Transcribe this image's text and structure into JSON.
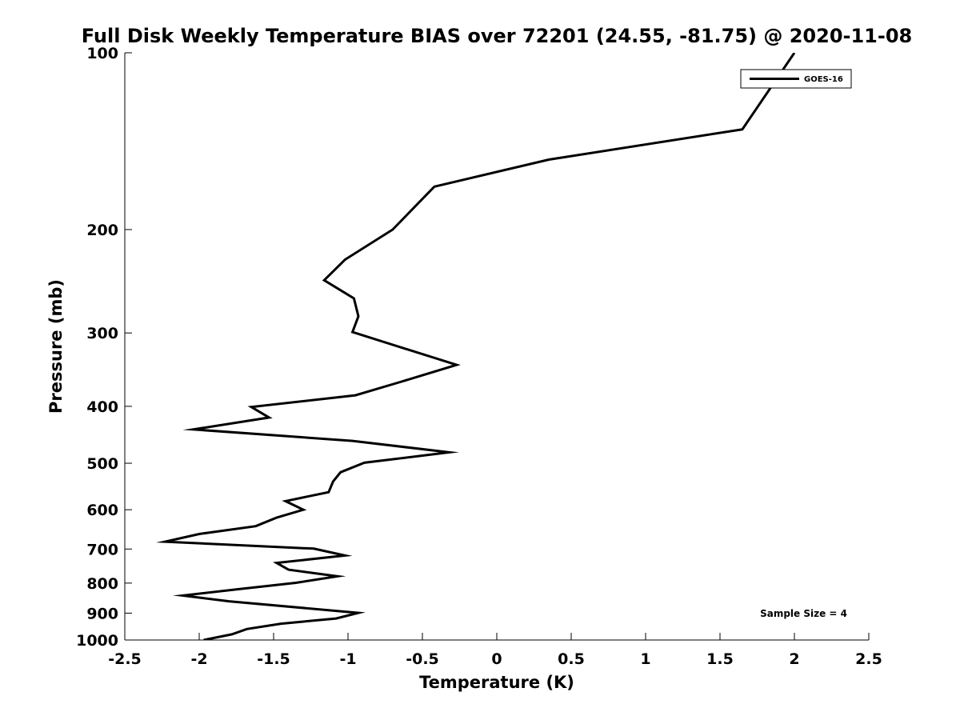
{
  "chart_data": {
    "type": "line",
    "title": "Full Disk Weekly Temperature BIAS over 72201 (24.55, -81.75) @ 2020-11-08",
    "xlabel": "Temperature (K)",
    "ylabel": "Pressure (mb)",
    "xlim": [
      -2.5,
      2.5
    ],
    "ylim": [
      100,
      1000
    ],
    "yscale": "log",
    "xticks": [
      -2.5,
      -2,
      -1.5,
      -1,
      -0.5,
      0,
      0.5,
      1,
      1.5,
      2,
      2.5
    ],
    "xtick_labels": [
      "-2.5",
      "-2",
      "-1.5",
      "-1",
      "-0.5",
      "0",
      "0.5",
      "1",
      "1.5",
      "2",
      "2.5"
    ],
    "yticks": [
      100,
      200,
      300,
      400,
      500,
      600,
      700,
      800,
      900,
      1000
    ],
    "ytick_labels": [
      "100",
      "200",
      "300",
      "400",
      "500",
      "600",
      "700",
      "800",
      "900",
      "1000"
    ],
    "grid": false,
    "legend": {
      "position": "top-right",
      "entries": [
        "GOES-16"
      ]
    },
    "annotation": "Sample Size = 4",
    "series": [
      {
        "name": "GOES-16",
        "color": "#000000",
        "points": [
          {
            "x": 2.0,
            "p": 100
          },
          {
            "x": 1.65,
            "p": 135
          },
          {
            "x": 0.35,
            "p": 152
          },
          {
            "x": -0.42,
            "p": 169
          },
          {
            "x": -0.7,
            "p": 200
          },
          {
            "x": -1.02,
            "p": 225
          },
          {
            "x": -1.16,
            "p": 244
          },
          {
            "x": -0.96,
            "p": 262
          },
          {
            "x": -0.93,
            "p": 281
          },
          {
            "x": -0.97,
            "p": 299
          },
          {
            "x": -0.27,
            "p": 340
          },
          {
            "x": -0.64,
            "p": 363
          },
          {
            "x": -0.95,
            "p": 383
          },
          {
            "x": -1.65,
            "p": 401
          },
          {
            "x": -1.53,
            "p": 418
          },
          {
            "x": -2.04,
            "p": 438
          },
          {
            "x": -0.97,
            "p": 458
          },
          {
            "x": -0.32,
            "p": 479
          },
          {
            "x": -0.89,
            "p": 499
          },
          {
            "x": -1.05,
            "p": 518
          },
          {
            "x": -1.1,
            "p": 537
          },
          {
            "x": -1.13,
            "p": 560
          },
          {
            "x": -1.42,
            "p": 580
          },
          {
            "x": -1.3,
            "p": 600
          },
          {
            "x": -1.48,
            "p": 619
          },
          {
            "x": -1.62,
            "p": 640
          },
          {
            "x": -2.0,
            "p": 660
          },
          {
            "x": -2.23,
            "p": 680
          },
          {
            "x": -1.23,
            "p": 699
          },
          {
            "x": -1.02,
            "p": 718
          },
          {
            "x": -1.48,
            "p": 739
          },
          {
            "x": -1.4,
            "p": 759
          },
          {
            "x": -1.07,
            "p": 779
          },
          {
            "x": -1.35,
            "p": 799
          },
          {
            "x": -1.75,
            "p": 820
          },
          {
            "x": -2.11,
            "p": 840
          },
          {
            "x": -1.8,
            "p": 859
          },
          {
            "x": -0.93,
            "p": 899
          },
          {
            "x": -1.08,
            "p": 919
          },
          {
            "x": -1.45,
            "p": 938
          },
          {
            "x": -1.68,
            "p": 958
          },
          {
            "x": -1.78,
            "p": 978
          },
          {
            "x": -1.97,
            "p": 1000
          }
        ]
      }
    ]
  }
}
